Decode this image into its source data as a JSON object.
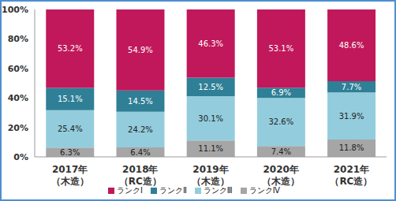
{
  "chart_data": {
    "type": "bar",
    "stacked": true,
    "data_labels": true,
    "legend": "bottom",
    "grid": false,
    "categories": [
      "2017年（木造）",
      "2018年（RC造）",
      "2019年（木造）",
      "2020年（木造）",
      "2021年（RC造）"
    ],
    "ylim": [
      0,
      100
    ],
    "yticks": [
      {
        "value": 0,
        "label": "0%"
      },
      {
        "value": 20,
        "label": "20%"
      },
      {
        "value": 40,
        "label": "40%"
      },
      {
        "value": 60,
        "label": "60%"
      },
      {
        "value": 80,
        "label": "80%"
      },
      {
        "value": 100,
        "label": "100%"
      }
    ],
    "series": [
      {
        "name": "ランクⅠ",
        "color": "#c0185a",
        "values": [
          53.2,
          54.9,
          46.3,
          53.1,
          48.6
        ],
        "value_labels": [
          "53.2%",
          "54.9%",
          "46.3%",
          "53.1%",
          "48.6%"
        ]
      },
      {
        "name": "ランクⅡ",
        "color": "#2f7f96",
        "values": [
          15.1,
          14.5,
          12.5,
          6.9,
          7.7
        ],
        "value_labels": [
          "15.1%",
          "14.5%",
          "12.5%",
          "6.9%",
          "7.7%"
        ]
      },
      {
        "name": "ランクⅢ",
        "color": "#93cddd",
        "values": [
          25.4,
          24.2,
          30.1,
          32.6,
          31.9
        ],
        "value_labels": [
          "25.4%",
          "24.2%",
          "30.1%",
          "32.6%",
          "31.9%"
        ]
      },
      {
        "name": "ランクⅣ",
        "color": "#a6a6a6",
        "values": [
          6.3,
          6.4,
          11.1,
          7.4,
          11.8
        ],
        "value_labels": [
          "6.3%",
          "6.4%",
          "11.1%",
          "7.4%",
          "11.8%"
        ]
      }
    ]
  }
}
